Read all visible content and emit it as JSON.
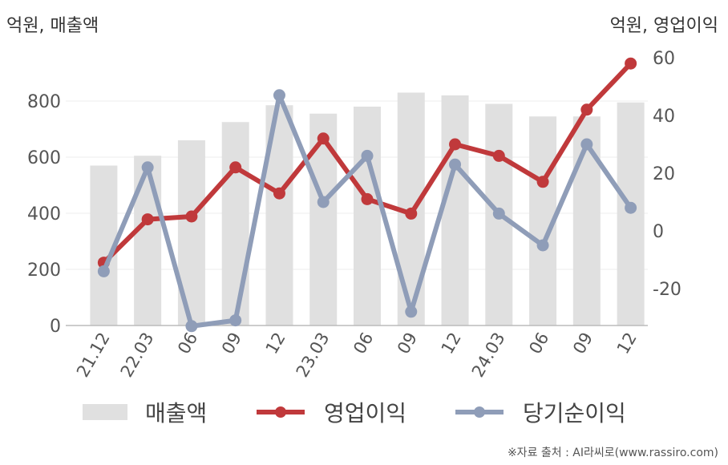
{
  "chart_data": {
    "type": "bar+line",
    "categories": [
      "21.12",
      "22.03",
      "06",
      "09",
      "12",
      "23.03",
      "06",
      "09",
      "12",
      "24.03",
      "06",
      "09",
      "12"
    ],
    "left_unit": "억원, 매출액",
    "right_unit": "억원, 영업이익",
    "left_axis": {
      "range": [
        0,
        900
      ],
      "ticks": [
        0,
        200,
        400,
        600,
        800
      ]
    },
    "right_axis": {
      "range": [
        -40,
        65
      ],
      "ticks": [
        -20,
        0,
        20,
        40,
        60
      ]
    },
    "series": [
      {
        "name": "매출액",
        "kind": "bar",
        "axis": "left",
        "color": "#e0e0e0",
        "values": [
          570,
          605,
          660,
          725,
          785,
          755,
          780,
          830,
          820,
          790,
          745,
          745,
          795
        ]
      },
      {
        "name": "영업이익",
        "kind": "line",
        "axis": "right",
        "color": "#c0393b",
        "values": [
          -11,
          4,
          5,
          22,
          13,
          32,
          11,
          6,
          30,
          26,
          17,
          42,
          58
        ]
      },
      {
        "name": "당기순이익",
        "kind": "line",
        "axis": "right",
        "color": "#8f9db8",
        "values": [
          -14,
          22,
          -33,
          -31,
          47,
          10,
          26,
          -28,
          23,
          6,
          -5,
          30,
          8
        ]
      }
    ],
    "grid": "horizontal",
    "legend": "bottom",
    "source": "※자료 출처 : AI라씨로(www.rassiro.com)"
  }
}
